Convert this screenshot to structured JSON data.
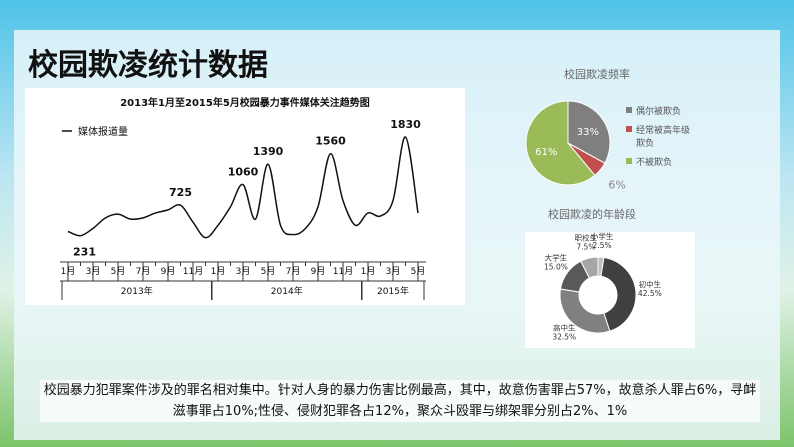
{
  "title": "校园欺凌统计数据",
  "chart_data": [
    {
      "type": "line",
      "title": "2013年1月至2015年5月校园暴力事件媒体关注趋势图",
      "categories": [
        "1月",
        null,
        "3月",
        null,
        "5月",
        null,
        "7月",
        null,
        "9月",
        null,
        "11月",
        null,
        "1月",
        null,
        "3月",
        null,
        "5月",
        null,
        "7月",
        null,
        "9月",
        null,
        "11月",
        null,
        "1月",
        null,
        "3月",
        null,
        "5月"
      ],
      "x_groups": [
        "2013年",
        "2014年",
        "2015年"
      ],
      "series": [
        {
          "name": "媒体报道量",
          "color": "#111111",
          "values": [
            300,
            231,
            350,
            520,
            580,
            500,
            520,
            600,
            650,
            725,
            450,
            200,
            400,
            700,
            1060,
            500,
            1390,
            400,
            250,
            350,
            700,
            1560,
            800,
            400,
            600,
            550,
            800,
            1830,
            600
          ],
          "value_labels": [
            null,
            "231",
            null,
            null,
            null,
            null,
            null,
            null,
            null,
            "725",
            null,
            null,
            null,
            null,
            "1060",
            null,
            "1390",
            null,
            null,
            null,
            null,
            "1560",
            null,
            null,
            null,
            null,
            null,
            "1830",
            null
          ]
        }
      ]
    },
    {
      "type": "pie",
      "title": "校园欺凌频率",
      "categories": [
        "偶尔被欺负",
        "经常被高年级欺负",
        "不被欺负"
      ],
      "values": [
        33,
        6,
        61
      ],
      "value_labels": [
        "33%",
        "6%",
        "61%"
      ],
      "colors": [
        "#7f7f7f",
        "#c0504d",
        "#9bbb59"
      ]
    },
    {
      "type": "donut",
      "title": "校园欺凌的年龄段",
      "categories": [
        "小学生",
        "初中生",
        "高中生",
        "大学生",
        "职校生"
      ],
      "values": [
        2.5,
        42.5,
        32.5,
        15.0,
        7.5
      ],
      "value_labels": [
        "2.5%",
        "42.5%",
        "32.5%",
        "15.0%",
        "7.5%"
      ],
      "colors": [
        "#bfbfbf",
        "#404040",
        "#808080",
        "#595959",
        "#a6a6a6"
      ]
    }
  ],
  "caption": "校园暴力犯罪案件涉及的罪名相对集中。针对人身的暴力伤害比例最高，其中，故意伤害罪占57%，故意杀人罪占6%，寻衅滋事罪占10%;性侵、侵财犯罪各占12%，聚众斗殴罪与绑架罪分别占2%、1%"
}
